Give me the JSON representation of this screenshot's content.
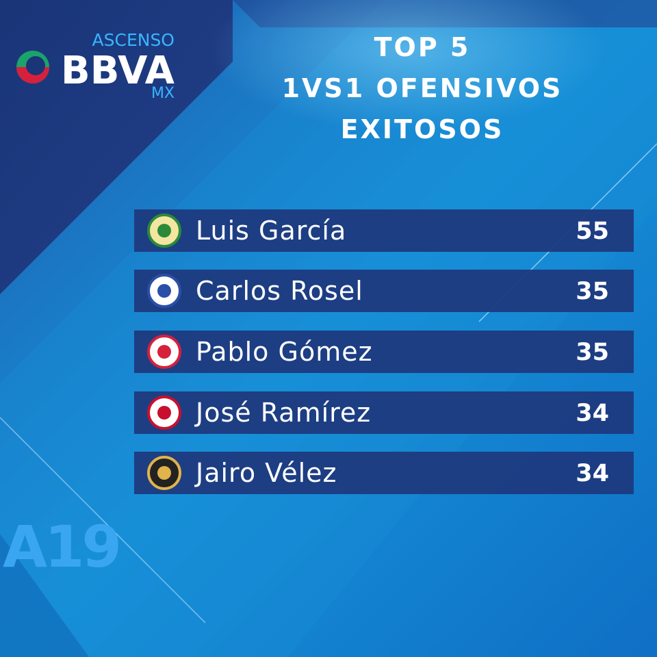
{
  "logo": {
    "top": "ASCENSO",
    "main": "BBVA",
    "bottom": "MX"
  },
  "title": [
    "TOP 5",
    "1VS1 OFENSIVOS",
    "EXITOSOS"
  ],
  "rows": [
    {
      "name": "Luis García",
      "value": 55
    },
    {
      "name": "Carlos Rosel",
      "value": 35
    },
    {
      "name": "Pablo Gómez",
      "value": 35
    },
    {
      "name": "José Ramírez",
      "value": 34
    },
    {
      "name": "Jairo Vélez",
      "value": 34
    }
  ],
  "season": "A19"
}
